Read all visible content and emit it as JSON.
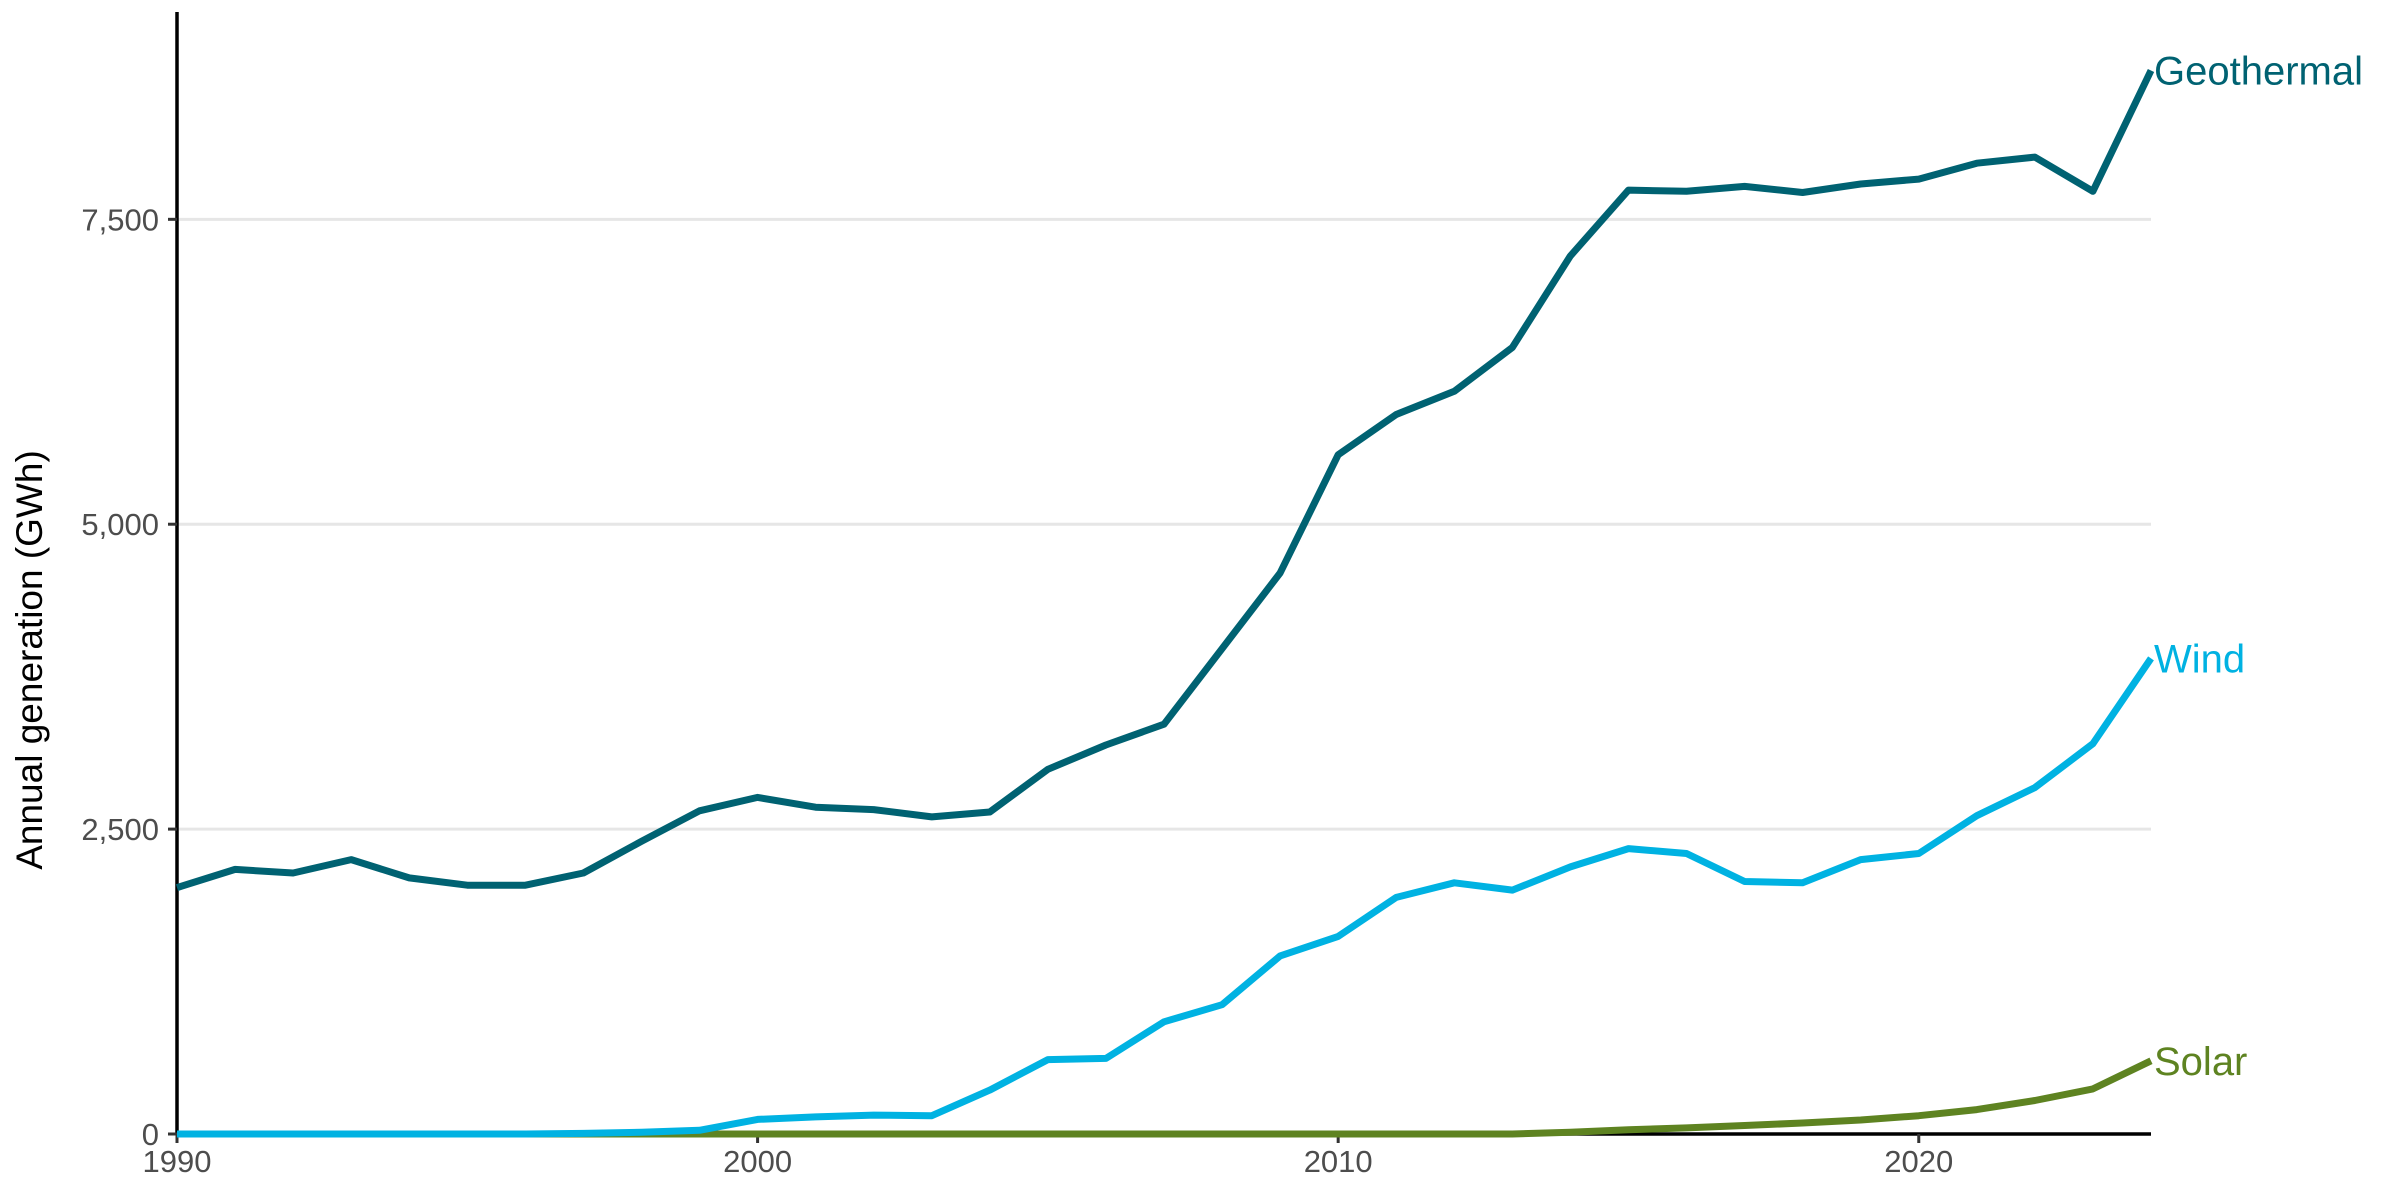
{
  "chart_data": {
    "type": "line",
    "title": "",
    "xlabel": "",
    "ylabel": "Annual generation (GWh)",
    "xlim": [
      1990,
      2024
    ],
    "ylim": [
      0,
      9200
    ],
    "x_ticks": [
      1990,
      2000,
      2010,
      2020
    ],
    "x_tick_labels": [
      "1990",
      "2000",
      "2010",
      "2020"
    ],
    "y_ticks": [
      0,
      2500,
      5000,
      7500
    ],
    "y_tick_labels": [
      "0",
      "2,500",
      "5,000",
      "7,500"
    ],
    "grid": {
      "horizontal": true,
      "vertical": false
    },
    "legend": "direct labels at line ends",
    "x": [
      1990,
      1991,
      1992,
      1993,
      1994,
      1995,
      1996,
      1997,
      1998,
      1999,
      2000,
      2001,
      2002,
      2003,
      2004,
      2005,
      2006,
      2007,
      2008,
      2009,
      2010,
      2011,
      2012,
      2013,
      2014,
      2015,
      2016,
      2017,
      2018,
      2019,
      2020,
      2021,
      2022,
      2023,
      2024
    ],
    "series": [
      {
        "name": "Geothermal",
        "color": "#006272",
        "values": [
          2020,
          2170,
          2140,
          2250,
          2100,
          2040,
          2040,
          2140,
          2400,
          2650,
          2760,
          2680,
          2660,
          2600,
          2640,
          2990,
          3190,
          3360,
          3980,
          4600,
          5570,
          5900,
          6090,
          6450,
          7200,
          7740,
          7730,
          7770,
          7720,
          7790,
          7830,
          7960,
          8010,
          7730,
          8720
        ]
      },
      {
        "name": "Wind",
        "color": "#00b2e2",
        "values": [
          0,
          0,
          0,
          0,
          0,
          0,
          0,
          5,
          15,
          30,
          120,
          140,
          155,
          150,
          360,
          610,
          620,
          920,
          1060,
          1460,
          1620,
          1940,
          2060,
          2000,
          2190,
          2340,
          2300,
          2070,
          2060,
          2250,
          2300,
          2610,
          2840,
          3200,
          3900
        ]
      },
      {
        "name": "Solar",
        "color": "#5e8321",
        "values": [
          0,
          0,
          0,
          0,
          0,
          0,
          0,
          0,
          0,
          0,
          0,
          0,
          0,
          0,
          0,
          0,
          0,
          0,
          0,
          0,
          0,
          0,
          0,
          0,
          15,
          35,
          50,
          70,
          90,
          115,
          150,
          200,
          275,
          370,
          600
        ]
      }
    ]
  }
}
